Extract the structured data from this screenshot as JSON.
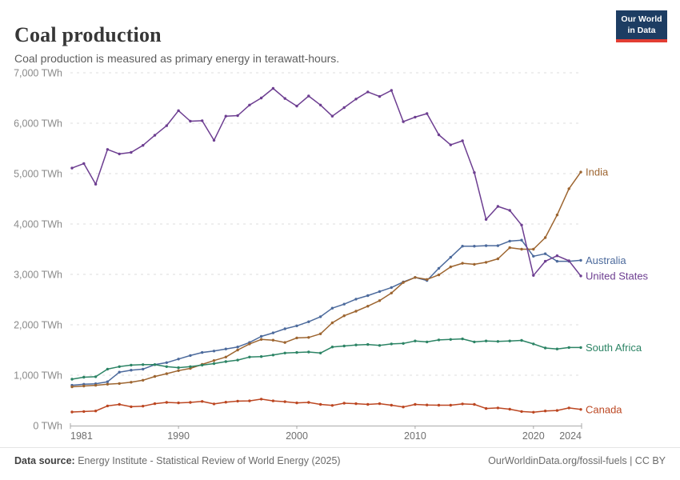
{
  "header": {
    "title": "Coal production",
    "subtitle": "Coal production is measured as primary energy in terawatt-hours.",
    "logo": {
      "line1": "Our World",
      "line2": "in Data"
    }
  },
  "footer": {
    "source_label": "Data source:",
    "source_text": " Energy Institute - Statistical Review of World Energy (2025)",
    "credit_text": "OurWorldinData.org/fossil-fuels | CC BY"
  },
  "chart_data": {
    "type": "line",
    "title": "Coal production",
    "unit": "TWh",
    "xlim": [
      1981,
      2024
    ],
    "ylim": [
      0,
      7000
    ],
    "grid": "horizontal-dashed",
    "legend_position": "end-of-line-labels",
    "yticks": [
      {
        "value": 0,
        "label": "0 TWh"
      },
      {
        "value": 1000,
        "label": "1,000 TWh"
      },
      {
        "value": 2000,
        "label": "2,000 TWh"
      },
      {
        "value": 3000,
        "label": "3,000 TWh"
      },
      {
        "value": 4000,
        "label": "4,000 TWh"
      },
      {
        "value": 5000,
        "label": "5,000 TWh"
      },
      {
        "value": 6000,
        "label": "6,000 TWh"
      },
      {
        "value": 7000,
        "label": "7,000 TWh"
      }
    ],
    "xticks": [
      {
        "year": 1981,
        "label": "1981",
        "anchor": "start"
      },
      {
        "year": 1990,
        "label": "1990",
        "anchor": "middle"
      },
      {
        "year": 2000,
        "label": "2000",
        "anchor": "middle"
      },
      {
        "year": 2010,
        "label": "2010",
        "anchor": "middle"
      },
      {
        "year": 2020,
        "label": "2020",
        "anchor": "middle"
      },
      {
        "year": 2024,
        "label": "2024",
        "anchor": "end"
      }
    ],
    "x": [
      1981,
      1982,
      1983,
      1984,
      1985,
      1986,
      1987,
      1988,
      1989,
      1990,
      1991,
      1992,
      1993,
      1994,
      1995,
      1996,
      1997,
      1998,
      1999,
      2000,
      2001,
      2002,
      2003,
      2004,
      2005,
      2006,
      2007,
      2008,
      2009,
      2010,
      2011,
      2012,
      2013,
      2014,
      2015,
      2016,
      2017,
      2018,
      2019,
      2020,
      2021,
      2022,
      2023,
      2024
    ],
    "series": [
      {
        "name": "Australia",
        "color": "#4C6A9C",
        "values": [
          800,
          820,
          830,
          870,
          1060,
          1100,
          1120,
          1210,
          1250,
          1320,
          1390,
          1450,
          1480,
          1520,
          1560,
          1650,
          1770,
          1840,
          1920,
          1980,
          2060,
          2160,
          2330,
          2410,
          2510,
          2580,
          2660,
          2740,
          2850,
          2940,
          2880,
          3120,
          3340,
          3560,
          3560,
          3570,
          3570,
          3660,
          3680,
          3360,
          3410,
          3260,
          3260,
          3280
        ]
      },
      {
        "name": "Canada",
        "color": "#BC4722",
        "values": [
          270,
          280,
          290,
          390,
          420,
          375,
          385,
          435,
          460,
          450,
          460,
          480,
          430,
          465,
          485,
          490,
          525,
          490,
          475,
          450,
          460,
          420,
          400,
          445,
          435,
          420,
          435,
          405,
          370,
          420,
          410,
          405,
          405,
          430,
          420,
          340,
          350,
          325,
          280,
          265,
          290,
          300,
          350,
          320
        ]
      },
      {
        "name": "India",
        "color": "#9D6530",
        "values": [
          770,
          785,
          800,
          820,
          835,
          860,
          900,
          975,
          1030,
          1090,
          1135,
          1215,
          1290,
          1360,
          1500,
          1620,
          1710,
          1695,
          1650,
          1740,
          1750,
          1820,
          2040,
          2180,
          2270,
          2370,
          2480,
          2630,
          2840,
          2940,
          2900,
          2990,
          3150,
          3220,
          3200,
          3240,
          3310,
          3530,
          3500,
          3500,
          3730,
          4180,
          4700,
          5030
        ]
      },
      {
        "name": "South Africa",
        "color": "#2C8465",
        "values": [
          920,
          960,
          970,
          1120,
          1170,
          1200,
          1210,
          1210,
          1170,
          1150,
          1170,
          1200,
          1230,
          1270,
          1300,
          1360,
          1370,
          1400,
          1440,
          1450,
          1460,
          1440,
          1560,
          1580,
          1600,
          1610,
          1590,
          1620,
          1630,
          1680,
          1660,
          1700,
          1710,
          1720,
          1660,
          1680,
          1670,
          1680,
          1690,
          1620,
          1540,
          1520,
          1550,
          1550
        ]
      },
      {
        "name": "United States",
        "color": "#6D3E91",
        "values": [
          5110,
          5200,
          4790,
          5480,
          5390,
          5420,
          5560,
          5760,
          5950,
          6250,
          6040,
          6050,
          5660,
          6140,
          6150,
          6360,
          6500,
          6690,
          6490,
          6340,
          6540,
          6360,
          6140,
          6310,
          6480,
          6620,
          6530,
          6650,
          6030,
          6120,
          6190,
          5770,
          5570,
          5650,
          5020,
          4090,
          4350,
          4270,
          3980,
          2980,
          3260,
          3370,
          3270,
          2970
        ]
      }
    ]
  }
}
